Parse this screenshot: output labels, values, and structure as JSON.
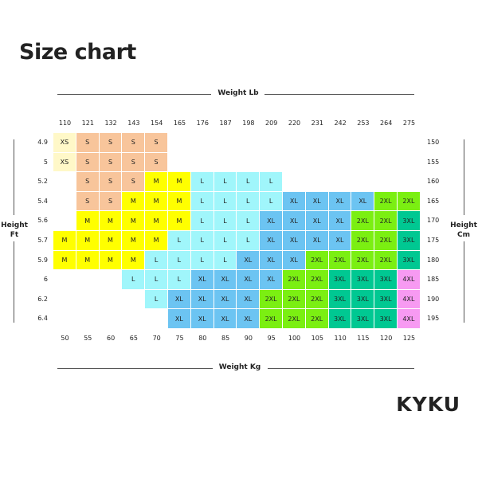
{
  "title": "Size chart",
  "brand": "KYKU",
  "chart_data": {
    "type": "table",
    "title": "Size chart",
    "top_axis_label": "Weight Lb",
    "bottom_axis_label": "Weight Kg",
    "left_axis_label": [
      "Height",
      "Ft"
    ],
    "right_axis_label": [
      "Height",
      "Cm"
    ],
    "weight_lb": [
      "110",
      "121",
      "132",
      "143",
      "154",
      "165",
      "176",
      "187",
      "198",
      "209",
      "220",
      "231",
      "242",
      "253",
      "264",
      "275"
    ],
    "weight_kg": [
      "50",
      "55",
      "60",
      "65",
      "70",
      "75",
      "80",
      "85",
      "90",
      "95",
      "100",
      "105",
      "110",
      "115",
      "120",
      "125"
    ],
    "height_ft": [
      "4.9",
      "5",
      "5.2",
      "5.4",
      "5.6",
      "5.7",
      "5.9",
      "6",
      "6.2",
      "6.4"
    ],
    "height_cm": [
      "150",
      "155",
      "160",
      "165",
      "170",
      "175",
      "180",
      "185",
      "190",
      "195"
    ],
    "rows": [
      [
        "XS",
        "S",
        "S",
        "S",
        "S",
        "",
        "",
        "",
        "",
        "",
        "",
        "",
        "",
        "",
        "",
        ""
      ],
      [
        "XS",
        "S",
        "S",
        "S",
        "S",
        "",
        "",
        "",
        "",
        "",
        "",
        "",
        "",
        "",
        "",
        ""
      ],
      [
        "",
        "S",
        "S",
        "S",
        "M",
        "M",
        "L",
        "L",
        "L",
        "L",
        "",
        "",
        "",
        "",
        "",
        ""
      ],
      [
        "",
        "S",
        "S",
        "M",
        "M",
        "M",
        "L",
        "L",
        "L",
        "L",
        "XL",
        "XL",
        "XL",
        "XL",
        "2XL",
        "2XL"
      ],
      [
        "",
        "M",
        "M",
        "M",
        "M",
        "M",
        "L",
        "L",
        "L",
        "XL",
        "XL",
        "XL",
        "XL",
        "2XL",
        "2XL",
        "3XL"
      ],
      [
        "M",
        "M",
        "M",
        "M",
        "M",
        "L",
        "L",
        "L",
        "L",
        "XL",
        "XL",
        "XL",
        "XL",
        "2XL",
        "2XL",
        "3XL"
      ],
      [
        "M",
        "M",
        "M",
        "M",
        "L",
        "L",
        "L",
        "L",
        "XL",
        "XL",
        "XL",
        "2XL",
        "2XL",
        "2XL",
        "2XL",
        "3XL"
      ],
      [
        "",
        "",
        "",
        "L",
        "L",
        "L",
        "XL",
        "XL",
        "XL",
        "XL",
        "2XL",
        "2XL",
        "3XL",
        "3XL",
        "3XL",
        "4XL"
      ],
      [
        "",
        "",
        "",
        "",
        "L",
        "XL",
        "XL",
        "XL",
        "XL",
        "2XL",
        "2XL",
        "2XL",
        "3XL",
        "3XL",
        "3XL",
        "4XL"
      ],
      [
        "",
        "",
        "",
        "",
        "",
        "XL",
        "XL",
        "XL",
        "XL",
        "2XL",
        "2XL",
        "2XL",
        "3XL",
        "3XL",
        "3XL",
        "4XL"
      ]
    ],
    "size_colors": {
      "XS": "#fff8c8",
      "S": "#f8c59b",
      "M": "#ffff00",
      "L": "#a0f6fb",
      "XL": "#6cc4f2",
      "2XL": "#7bef12",
      "3XL": "#00c892",
      "4XL": "#f79af2"
    }
  }
}
